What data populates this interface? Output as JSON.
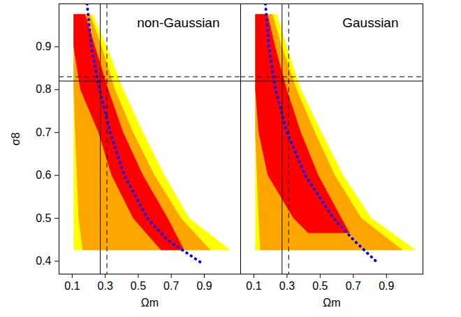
{
  "chart_data": [
    {
      "type": "area",
      "title": "non-Gaussian",
      "xlabel": "Ωm",
      "ylabel": "σ8",
      "xlim": [
        0.02,
        1.12
      ],
      "ylim": [
        0.37,
        1.0
      ],
      "xticks": [
        0.1,
        0.3,
        0.5,
        0.7,
        0.9
      ],
      "yticks": [
        0.4,
        0.5,
        0.6,
        0.7,
        0.8,
        0.9
      ],
      "series": [
        {
          "type": "area",
          "color": "#ffff00",
          "y": [
            0.975,
            0.9,
            0.8,
            0.7,
            0.6,
            0.5,
            0.425
          ],
          "x_left": [
            0.11,
            0.11,
            0.11,
            0.11,
            0.11,
            0.11,
            0.11
          ],
          "x_right": [
            0.225,
            0.31,
            0.41,
            0.53,
            0.66,
            0.81,
            1.06
          ]
        },
        {
          "type": "area",
          "color": "#ffa500",
          "y": [
            0.975,
            0.9,
            0.8,
            0.7,
            0.6,
            0.5,
            0.425
          ],
          "x_left": [
            0.11,
            0.11,
            0.11,
            0.12,
            0.13,
            0.14,
            0.165
          ],
          "x_right": [
            0.21,
            0.28,
            0.36,
            0.47,
            0.6,
            0.76,
            0.94
          ]
        },
        {
          "type": "area",
          "color": "#ff0000",
          "y": [
            0.975,
            0.9,
            0.8,
            0.7,
            0.6,
            0.5,
            0.425
          ],
          "x_left": [
            0.11,
            0.11,
            0.15,
            0.26,
            0.34,
            0.47,
            0.64
          ],
          "x_right": [
            0.18,
            0.24,
            0.32,
            0.41,
            0.53,
            0.68,
            0.78
          ]
        },
        {
          "type": "line",
          "color": "#0000ff",
          "line_style": "dotted",
          "x": [
            0.19,
            0.215,
            0.266,
            0.33,
            0.415,
            0.555,
            0.675,
            0.887
          ],
          "y": [
            1.0,
            0.9,
            0.8,
            0.7,
            0.6,
            0.5,
            0.45,
            0.395
          ]
        }
      ],
      "vlines": [
        {
          "value": 0.27,
          "line_style": "solid",
          "color": "#000000"
        },
        {
          "value": 0.31,
          "line_style": "dashed",
          "color": "#000000"
        }
      ],
      "hlines": [
        {
          "value": 0.82,
          "line_style": "solid",
          "color": "#000000"
        },
        {
          "value": 0.83,
          "line_style": "dashed",
          "color": "#000000"
        }
      ]
    },
    {
      "type": "area",
      "title": "Gaussian",
      "xlabel": "Ωm",
      "xlim": [
        0.02,
        1.12
      ],
      "ylim": [
        0.37,
        1.0
      ],
      "xticks": [
        0.1,
        0.3,
        0.5,
        0.7,
        0.9
      ],
      "yticks": [
        0.4,
        0.5,
        0.6,
        0.7,
        0.8,
        0.9
      ],
      "tick_labels": "x",
      "series": [
        {
          "type": "area",
          "color": "#ffff00",
          "y": [
            0.975,
            0.9,
            0.8,
            0.7,
            0.6,
            0.5,
            0.425
          ],
          "x_left": [
            0.11,
            0.11,
            0.11,
            0.11,
            0.11,
            0.11,
            0.11
          ],
          "x_right": [
            0.24,
            0.3,
            0.385,
            0.51,
            0.64,
            0.81,
            1.08
          ]
        },
        {
          "type": "area",
          "color": "#ffa500",
          "y": [
            0.975,
            0.9,
            0.8,
            0.7,
            0.6,
            0.5,
            0.425
          ],
          "x_left": [
            0.11,
            0.11,
            0.11,
            0.11,
            0.12,
            0.13,
            0.14
          ],
          "x_right": [
            0.215,
            0.27,
            0.36,
            0.47,
            0.59,
            0.75,
            1.0
          ]
        },
        {
          "type": "area",
          "color": "#ff0000",
          "y": [
            0.975,
            0.9,
            0.8,
            0.7,
            0.6,
            0.5,
            0.465
          ],
          "x_left": [
            0.11,
            0.11,
            0.11,
            0.13,
            0.185,
            0.34,
            0.43
          ],
          "x_right": [
            0.185,
            0.23,
            0.3,
            0.385,
            0.49,
            0.63,
            0.68
          ]
        },
        {
          "type": "line",
          "color": "#0000ff",
          "line_style": "dotted",
          "x": [
            0.17,
            0.19,
            0.23,
            0.3,
            0.41,
            0.58,
            0.7,
            0.85
          ],
          "y": [
            1.0,
            0.9,
            0.8,
            0.7,
            0.6,
            0.5,
            0.45,
            0.395
          ]
        }
      ],
      "vlines": [
        {
          "value": 0.27,
          "line_style": "solid",
          "color": "#000000"
        },
        {
          "value": 0.31,
          "line_style": "dashed",
          "color": "#000000"
        }
      ],
      "hlines": [
        {
          "value": 0.82,
          "line_style": "solid",
          "color": "#000000"
        },
        {
          "value": 0.83,
          "line_style": "dashed",
          "color": "#000000"
        }
      ]
    }
  ]
}
